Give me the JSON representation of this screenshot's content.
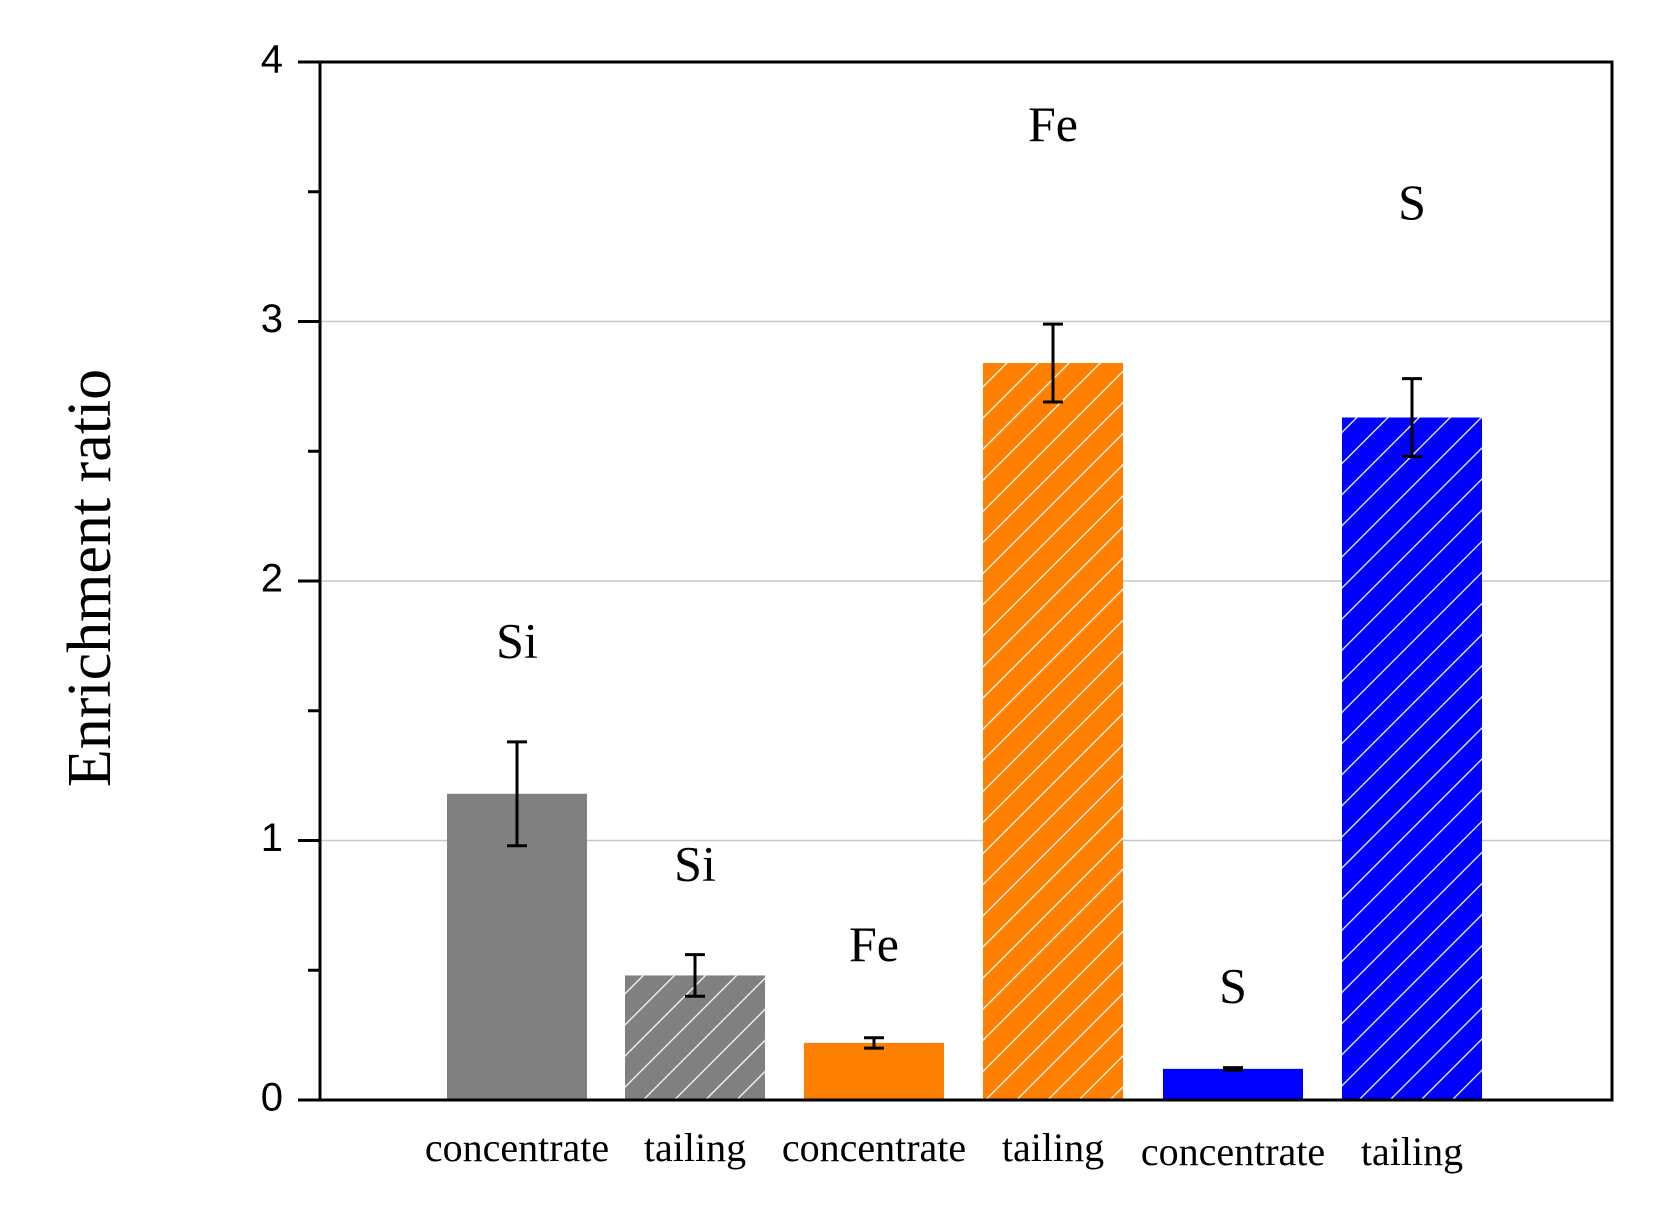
{
  "chart_data": {
    "type": "bar",
    "title": "",
    "xlabel": "",
    "ylabel": "Enrichment ratio",
    "ylim": [
      0,
      4
    ],
    "yticks": [
      "0",
      "1",
      "2",
      "3",
      "4"
    ],
    "grid": "horizontal",
    "categories": [
      "concentrate",
      "tailing",
      "concentrate",
      "tailing",
      "concentrate",
      "tailing"
    ],
    "bars": [
      {
        "element": "Si",
        "category": "concentrate",
        "value": 1.18,
        "error": 0.2,
        "color": "#808080",
        "hatched": false
      },
      {
        "element": "Si",
        "category": "tailing",
        "value": 0.48,
        "error": 0.08,
        "color": "#808080",
        "hatched": true
      },
      {
        "element": "Fe",
        "category": "concentrate",
        "value": 0.22,
        "error": 0.02,
        "color": "#ff8000",
        "hatched": false
      },
      {
        "element": "Fe",
        "category": "tailing",
        "value": 2.84,
        "error": 0.15,
        "color": "#ff8000",
        "hatched": true
      },
      {
        "element": "S",
        "category": "concentrate",
        "value": 0.12,
        "error": 0.005,
        "color": "#0000ff",
        "hatched": false
      },
      {
        "element": "S",
        "category": "tailing",
        "value": 2.63,
        "error": 0.15,
        "color": "#0000ff",
        "hatched": true
      }
    ],
    "bar_labels": [
      {
        "text": "Si",
        "value": 1.75
      },
      {
        "text": "Si",
        "value": 0.89
      },
      {
        "text": "Fe",
        "value": 0.58
      },
      {
        "text": "Fe",
        "value": 3.74
      },
      {
        "text": "S",
        "value": 0.42
      },
      {
        "text": "S",
        "value": 3.44
      }
    ]
  }
}
